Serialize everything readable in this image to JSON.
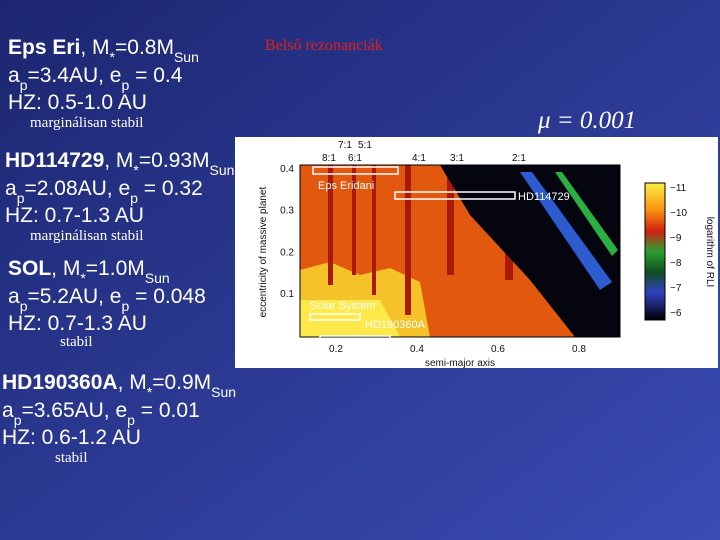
{
  "title": "Belső rezonanciák",
  "mu_label": "μ = 0.001",
  "systems": [
    {
      "name": "Eps Eri",
      "mass": [
        ", M",
        "*",
        "=0.8M",
        "Sun"
      ],
      "orbit": [
        "a",
        "p",
        "=3.4AU, e",
        "p",
        " = 0.4"
      ],
      "hz": "HZ: 0.5-1.0 AU",
      "status": "marginálisan stabil"
    },
    {
      "name": "HD114729",
      "mass": [
        ", M",
        "*",
        "=0.93M",
        "Sun"
      ],
      "orbit": [
        "a",
        "p",
        "=2.08AU, e",
        "p",
        " = 0.32"
      ],
      "hz": "HZ: 0.7-1.3 AU",
      "status": "marginálisan stabil"
    },
    {
      "name": "SOL",
      "mass": [
        ", M",
        "*",
        "=1.0M",
        "Sun"
      ],
      "orbit": [
        "a",
        "p",
        "=5.2AU, e",
        "p",
        " = 0.048"
      ],
      "hz": "HZ: 0.7-1.3 AU",
      "status": "stabil"
    },
    {
      "name": "HD190360A",
      "mass": [
        ", M",
        "*",
        "=0.9M",
        "Sun"
      ],
      "orbit": [
        "a",
        "p",
        "=3.65AU, e",
        "p",
        " = 0.01"
      ],
      "hz": "HZ: 0.6-1.2 AU",
      "status": "stabil"
    }
  ],
  "figure": {
    "y_label": "eccentricity of massive planet",
    "x_label": "semi-major axis",
    "yticks": [
      "0.4",
      "0.3",
      "0.2",
      "0.1"
    ],
    "xticks": [
      "0.2",
      "0.4",
      "0.6",
      "0.8"
    ],
    "resonances": [
      "7:1",
      "5:1",
      "8:1",
      "6:1",
      "4:1",
      "3:1",
      "2:1"
    ],
    "annotations": [
      "Eps Eridani",
      "HD114729",
      "Solar System",
      "HD190360A"
    ],
    "colorbar_label": "logarithm of RLI",
    "colorbar_ticks": [
      "−11",
      "−10",
      "−9",
      "−8",
      "−7",
      "−6"
    ]
  }
}
